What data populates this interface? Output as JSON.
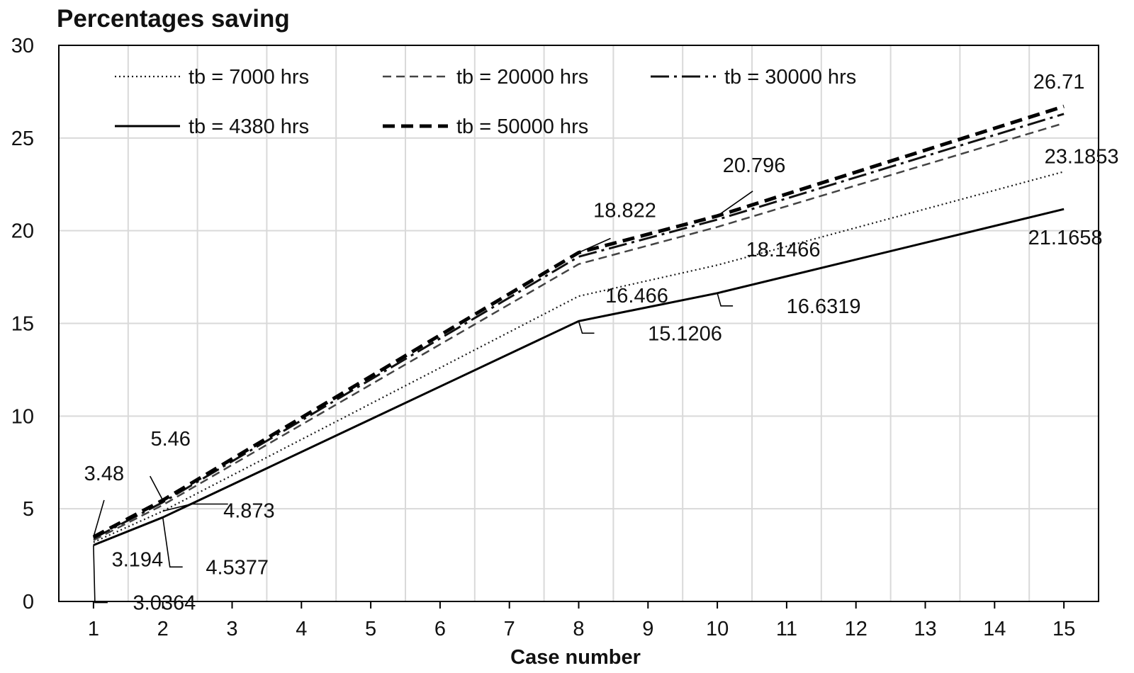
{
  "chart_data": {
    "type": "line",
    "title": "Percentages saving",
    "xlabel": "Case number",
    "ylabel": "",
    "x": [
      1,
      2,
      3,
      4,
      5,
      6,
      7,
      8,
      9,
      10,
      11,
      12,
      13,
      14,
      15
    ],
    "xlim": [
      0.5,
      15.5
    ],
    "ylim": [
      0,
      30
    ],
    "yticks": [
      0,
      5,
      10,
      15,
      20,
      25,
      30
    ],
    "xticks": [
      1,
      2,
      3,
      4,
      5,
      6,
      7,
      8,
      9,
      10,
      11,
      12,
      13,
      14,
      15
    ],
    "grid": true,
    "legend_position": "top-left",
    "series": [
      {
        "name": "tb = 7000 hrs",
        "style": "dotted",
        "color": "#1a1a1a",
        "x": [
          1,
          2,
          8,
          10,
          15
        ],
        "values": [
          3.194,
          4.873,
          16.466,
          18.1466,
          23.1853
        ]
      },
      {
        "name": "tb = 20000 hrs",
        "style": "dashed",
        "color": "#444444",
        "x": [
          1,
          2,
          8,
          10,
          15
        ],
        "values": [
          3.3,
          5.2,
          18.2,
          20.2,
          25.8
        ]
      },
      {
        "name": "tb = 30000 hrs",
        "style": "dashdot",
        "color": "#111111",
        "x": [
          1,
          2,
          8,
          10,
          15
        ],
        "values": [
          3.4,
          5.35,
          18.6,
          20.6,
          26.3
        ]
      },
      {
        "name": "tb = 4380 hrs",
        "style": "solid",
        "color": "#000000",
        "x": [
          1,
          2,
          8,
          10,
          15
        ],
        "values": [
          3.0364,
          4.5377,
          15.1206,
          16.6319,
          21.1658
        ]
      },
      {
        "name": "tb = 50000 hrs",
        "style": "boldDashed",
        "color": "#000000",
        "x": [
          1,
          2,
          8,
          10,
          15
        ],
        "values": [
          3.48,
          5.46,
          18.822,
          20.796,
          26.71
        ]
      }
    ],
    "data_labels": [
      {
        "text": "3.48",
        "x": 1,
        "y": 3.48
      },
      {
        "text": "5.46",
        "x": 2,
        "y": 5.46
      },
      {
        "text": "4.873",
        "x": 2,
        "y": 4.873
      },
      {
        "text": "3.194",
        "x": 1,
        "y": 3.194
      },
      {
        "text": "4.5377",
        "x": 2,
        "y": 4.5377
      },
      {
        "text": "3.0364",
        "x": 1,
        "y": 3.0364
      },
      {
        "text": "18.822",
        "x": 8,
        "y": 18.822
      },
      {
        "text": "20.796",
        "x": 10,
        "y": 20.796
      },
      {
        "text": "16.466",
        "x": 8,
        "y": 16.466
      },
      {
        "text": "15.1206",
        "x": 8,
        "y": 15.1206
      },
      {
        "text": "18.1466",
        "x": 10,
        "y": 18.1466
      },
      {
        "text": "16.6319",
        "x": 10,
        "y": 16.6319
      },
      {
        "text": "26.71",
        "x": 15,
        "y": 26.71
      },
      {
        "text": "23.1853",
        "x": 15,
        "y": 23.1853
      },
      {
        "text": "21.1658",
        "x": 15,
        "y": 21.1658
      }
    ]
  }
}
